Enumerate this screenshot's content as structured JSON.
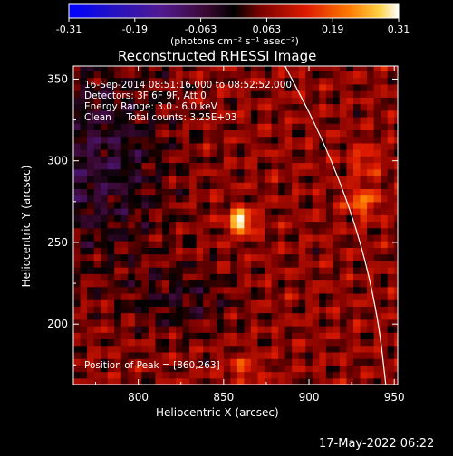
{
  "chart_data": {
    "type": "heatmap",
    "title": "Reconstructed RHESSI Image",
    "xlabel": "Heliocentric X (arcsec)",
    "ylabel": "Heliocentric Y (arcsec)",
    "xlim": [
      762,
      952
    ],
    "ylim": [
      163,
      358
    ],
    "x_ticks": [
      800,
      850,
      900,
      950
    ],
    "y_ticks": [
      200,
      250,
      300,
      350
    ],
    "colorbar": {
      "ticks": [
        "-0.31",
        "-0.19",
        "-0.063",
        "0.063",
        "0.19",
        "0.31"
      ],
      "range": [
        -0.31,
        0.31
      ],
      "units_label": "(photons cm⁻² s⁻¹ asec⁻²)"
    },
    "annotations": [
      "16-Sep-2014 08:51:16.000 to 08:52:52.000",
      "Detectors: 3F 6F 9F, Att 0",
      "Energy Range: 3.0 - 6.0 keV",
      "Clean     Total counts: 3.25E+03"
    ],
    "peak_label": "Position of Peak = [860,263]",
    "peak": {
      "x": 860,
      "y": 263,
      "value": 0.31
    },
    "secondary_sources": [
      {
        "x": 931,
        "y": 275,
        "value": 0.19
      },
      {
        "x": 933,
        "y": 300,
        "value": 0.14
      },
      {
        "x": 862,
        "y": 172,
        "value": 0.13
      }
    ],
    "limb_curve": [
      [
        886,
        358
      ],
      [
        905,
        320
      ],
      [
        921,
        280
      ],
      [
        933,
        240
      ],
      [
        941,
        200
      ],
      [
        945,
        163
      ]
    ],
    "grid": false
  },
  "timestamp": "17-May-2022 06:22"
}
